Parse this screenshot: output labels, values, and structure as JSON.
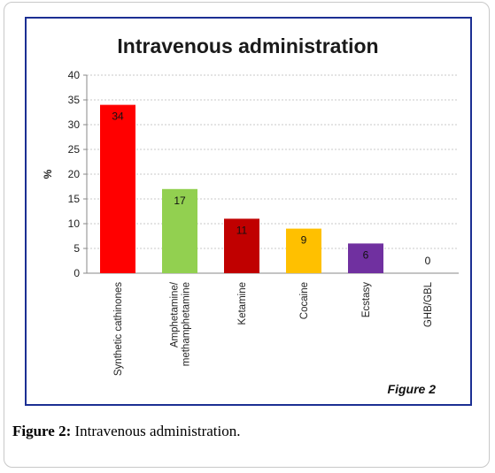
{
  "caption": {
    "label": "Figure 2:",
    "text": " Intravenous administration."
  },
  "chart_data": {
    "type": "bar",
    "title": "Intravenous administration",
    "ylabel": "%",
    "xlabel": "",
    "ylim": [
      0,
      40
    ],
    "yticks": [
      0,
      5,
      10,
      15,
      20,
      25,
      30,
      35,
      40
    ],
    "grid": true,
    "categories": [
      [
        "Synthetic cathinones"
      ],
      [
        "Amphetamine/",
        "methamphetamine"
      ],
      [
        "Ketamine"
      ],
      [
        "Cocaine"
      ],
      [
        "Ecstasy"
      ],
      [
        "GHB/GBL"
      ]
    ],
    "values": [
      34,
      17,
      11,
      9,
      6,
      0
    ],
    "colors": [
      "#ff0000",
      "#92d050",
      "#c00000",
      "#ffc000",
      "#7030a0",
      "#ffffff"
    ],
    "figure_label": "Figure 2"
  }
}
